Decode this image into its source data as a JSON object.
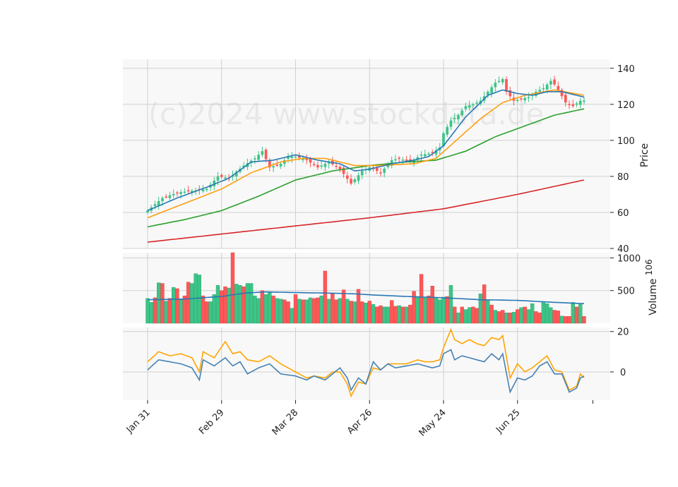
{
  "chart_data": {
    "type": "candlestick",
    "watermark": "(c)2024 www.stockdata.de",
    "x_tick_labels": [
      "Jan 31",
      "Feb 29",
      "Mar 28",
      "Apr 26",
      "May 24",
      "Jun 25"
    ],
    "x_tick_index": [
      0,
      20,
      40,
      60,
      80,
      100
    ],
    "num_sessions": 119,
    "colors": {
      "up": "#3cc487",
      "down": "#ff5757",
      "ma_short": "#2878b5",
      "ma_mid": "#ff9f0f",
      "ma_long": "#2ca02c",
      "ma_200": "#d62728",
      "vol_ma": "#2878b5",
      "osc_1": "#4682b4",
      "osc_2": "#ffa500"
    },
    "price_panel": {
      "ylabel": "Price",
      "yticks": [
        40,
        60,
        80,
        100,
        120,
        140
      ],
      "ylim": [
        40,
        145
      ],
      "close_anchors": [
        [
          0,
          61
        ],
        [
          4,
          68
        ],
        [
          8,
          71
        ],
        [
          12,
          72
        ],
        [
          16,
          73
        ],
        [
          19,
          80
        ],
        [
          22,
          79
        ],
        [
          26,
          86
        ],
        [
          29,
          90
        ],
        [
          31,
          94
        ],
        [
          33,
          85
        ],
        [
          36,
          87
        ],
        [
          38,
          91
        ],
        [
          40,
          91
        ],
        [
          43,
          89
        ],
        [
          46,
          85
        ],
        [
          49,
          88
        ],
        [
          52,
          84
        ],
        [
          55,
          76
        ],
        [
          58,
          83
        ],
        [
          60,
          85
        ],
        [
          63,
          82
        ],
        [
          66,
          89
        ],
        [
          68,
          90
        ],
        [
          71,
          88
        ],
        [
          74,
          92
        ],
        [
          77,
          93
        ],
        [
          79,
          96
        ],
        [
          80,
          104
        ],
        [
          82,
          111
        ],
        [
          84,
          114
        ],
        [
          86,
          119
        ],
        [
          88,
          120
        ],
        [
          90,
          122
        ],
        [
          92,
          127
        ],
        [
          94,
          132
        ],
        [
          96,
          134
        ],
        [
          97,
          127
        ],
        [
          99,
          122
        ],
        [
          101,
          123
        ],
        [
          103,
          124
        ],
        [
          105,
          127
        ],
        [
          107,
          129
        ],
        [
          109,
          133
        ],
        [
          110,
          131
        ],
        [
          111,
          128
        ],
        [
          113,
          121
        ],
        [
          115,
          119
        ],
        [
          117,
          122
        ],
        [
          118,
          122
        ]
      ],
      "ma_short_anchors": [
        [
          0,
          61
        ],
        [
          8,
          68
        ],
        [
          16,
          74
        ],
        [
          22,
          79
        ],
        [
          28,
          88
        ],
        [
          34,
          89
        ],
        [
          40,
          92
        ],
        [
          46,
          89
        ],
        [
          52,
          87
        ],
        [
          56,
          83
        ],
        [
          60,
          84
        ],
        [
          66,
          87
        ],
        [
          72,
          89
        ],
        [
          76,
          91
        ],
        [
          80,
          97
        ],
        [
          86,
          113
        ],
        [
          92,
          125
        ],
        [
          96,
          128
        ],
        [
          100,
          126
        ],
        [
          104,
          125
        ],
        [
          108,
          127
        ],
        [
          112,
          127
        ],
        [
          118,
          124
        ]
      ],
      "ma_mid_anchors": [
        [
          0,
          57
        ],
        [
          10,
          65
        ],
        [
          20,
          73
        ],
        [
          28,
          82
        ],
        [
          36,
          88
        ],
        [
          42,
          90
        ],
        [
          48,
          90
        ],
        [
          56,
          86
        ],
        [
          62,
          86
        ],
        [
          72,
          87
        ],
        [
          78,
          90
        ],
        [
          84,
          101
        ],
        [
          90,
          112
        ],
        [
          96,
          121
        ],
        [
          102,
          125
        ],
        [
          110,
          128
        ],
        [
          118,
          125
        ]
      ],
      "ma_long_anchors": [
        [
          0,
          52
        ],
        [
          10,
          56
        ],
        [
          20,
          61
        ],
        [
          30,
          69
        ],
        [
          40,
          78
        ],
        [
          50,
          83
        ],
        [
          60,
          86
        ],
        [
          70,
          88
        ],
        [
          78,
          89
        ],
        [
          86,
          94
        ],
        [
          94,
          102
        ],
        [
          102,
          108
        ],
        [
          110,
          114
        ],
        [
          118,
          117.5
        ]
      ],
      "ma_200_anchors": [
        [
          0,
          43.5
        ],
        [
          20,
          48
        ],
        [
          40,
          52.5
        ],
        [
          60,
          57
        ],
        [
          80,
          62
        ],
        [
          100,
          70
        ],
        [
          118,
          78
        ]
      ]
    },
    "volume_panel": {
      "ylabel": "Volume",
      "yunit": "10^6",
      "yticks": [
        500,
        1000
      ],
      "ylim": [
        0,
        1080
      ],
      "values": [
        380,
        320,
        390,
        620,
        610,
        340,
        380,
        550,
        530,
        360,
        420,
        630,
        610,
        760,
        740,
        420,
        330,
        330,
        440,
        580,
        500,
        560,
        540,
        1080,
        600,
        580,
        560,
        610,
        610,
        420,
        380,
        500,
        440,
        480,
        420,
        380,
        370,
        360,
        330,
        230,
        440,
        370,
        360,
        360,
        390,
        380,
        390,
        420,
        800,
        370,
        450,
        360,
        380,
        510,
        370,
        340,
        330,
        520,
        330,
        310,
        340,
        290,
        250,
        270,
        250,
        250,
        350,
        260,
        270,
        250,
        250,
        280,
        490,
        400,
        750,
        390,
        420,
        570,
        390,
        360,
        400,
        410,
        580,
        250,
        160,
        250,
        210,
        240,
        250,
        230,
        450,
        590,
        360,
        280,
        200,
        180,
        200,
        160,
        160,
        170,
        210,
        240,
        250,
        210,
        300,
        180,
        160,
        330,
        300,
        240,
        200,
        190,
        110,
        105,
        105,
        320,
        250,
        300,
        105
      ],
      "directions": [
        1,
        1,
        0,
        1,
        0,
        1,
        0,
        1,
        0,
        1,
        0,
        0,
        1,
        1,
        1,
        0,
        0,
        1,
        1,
        1,
        0,
        0,
        1,
        0,
        1,
        1,
        0,
        1,
        1,
        1,
        1,
        0,
        1,
        1,
        0,
        1,
        1,
        0,
        0,
        1,
        0,
        1,
        0,
        1,
        1,
        0,
        0,
        1,
        0,
        1,
        0,
        0,
        1,
        0,
        1,
        0,
        1,
        0,
        0,
        1,
        0,
        1,
        0,
        0,
        1,
        1,
        0,
        0,
        1,
        0,
        1,
        0,
        0,
        1,
        0,
        1,
        0,
        0,
        1,
        1,
        1,
        0,
        1,
        0,
        1,
        0,
        1,
        1,
        0,
        0,
        1,
        0,
        1,
        0,
        1,
        0,
        0,
        1,
        0,
        1,
        0,
        1,
        0,
        1,
        1,
        0,
        0,
        1,
        1,
        1,
        0,
        0,
        1,
        0,
        0,
        1,
        0,
        1,
        0
      ],
      "ma_anchors": [
        [
          0,
          360
        ],
        [
          10,
          370
        ],
        [
          20,
          410
        ],
        [
          26,
          460
        ],
        [
          32,
          480
        ],
        [
          40,
          470
        ],
        [
          50,
          460
        ],
        [
          56,
          450
        ],
        [
          62,
          430
        ],
        [
          70,
          410
        ],
        [
          80,
          390
        ],
        [
          90,
          360
        ],
        [
          100,
          350
        ],
        [
          110,
          320
        ],
        [
          118,
          300
        ]
      ]
    },
    "oscillator_panel": {
      "yticks": [
        0,
        20
      ],
      "ylim": [
        -14,
        22
      ],
      "series_1_anchors": [
        [
          0,
          1
        ],
        [
          3,
          6
        ],
        [
          6,
          5
        ],
        [
          9,
          4
        ],
        [
          12,
          2
        ],
        [
          14,
          -4
        ],
        [
          15,
          6
        ],
        [
          18,
          3
        ],
        [
          21,
          7
        ],
        [
          23,
          3
        ],
        [
          25,
          5
        ],
        [
          27,
          -1
        ],
        [
          30,
          2
        ],
        [
          33,
          4
        ],
        [
          36,
          -1
        ],
        [
          40,
          -2
        ],
        [
          43,
          -4
        ],
        [
          45,
          -2
        ],
        [
          48,
          -4
        ],
        [
          50,
          -1
        ],
        [
          52,
          2
        ],
        [
          54,
          -3
        ],
        [
          55,
          -9
        ],
        [
          57,
          -3
        ],
        [
          59,
          -6
        ],
        [
          61,
          5
        ],
        [
          63,
          1
        ],
        [
          65,
          4
        ],
        [
          67,
          2
        ],
        [
          70,
          3
        ],
        [
          73,
          4
        ],
        [
          75,
          3
        ],
        [
          77,
          2
        ],
        [
          79,
          3
        ],
        [
          80,
          9
        ],
        [
          82,
          11
        ],
        [
          83,
          6
        ],
        [
          85,
          8
        ],
        [
          87,
          7
        ],
        [
          89,
          6
        ],
        [
          91,
          5
        ],
        [
          93,
          9
        ],
        [
          95,
          6
        ],
        [
          96,
          9
        ],
        [
          98,
          -10
        ],
        [
          100,
          -3
        ],
        [
          102,
          -4
        ],
        [
          104,
          -2
        ],
        [
          106,
          3
        ],
        [
          108,
          5
        ],
        [
          110,
          -1
        ],
        [
          112,
          -1
        ],
        [
          114,
          -10
        ],
        [
          116,
          -8
        ],
        [
          117,
          -3
        ],
        [
          118,
          -2
        ]
      ],
      "series_2_anchors": [
        [
          0,
          5
        ],
        [
          3,
          10
        ],
        [
          6,
          8
        ],
        [
          9,
          9
        ],
        [
          12,
          7
        ],
        [
          14,
          0
        ],
        [
          15,
          10
        ],
        [
          18,
          7
        ],
        [
          21,
          15
        ],
        [
          23,
          9
        ],
        [
          25,
          10
        ],
        [
          27,
          6
        ],
        [
          30,
          5
        ],
        [
          33,
          8
        ],
        [
          36,
          4
        ],
        [
          40,
          0
        ],
        [
          43,
          -3
        ],
        [
          45,
          -2
        ],
        [
          48,
          -3
        ],
        [
          50,
          0
        ],
        [
          52,
          0
        ],
        [
          54,
          -6
        ],
        [
          55,
          -12
        ],
        [
          57,
          -5
        ],
        [
          59,
          -6
        ],
        [
          61,
          2
        ],
        [
          63,
          1
        ],
        [
          65,
          4
        ],
        [
          67,
          4
        ],
        [
          70,
          4
        ],
        [
          73,
          6
        ],
        [
          75,
          5
        ],
        [
          77,
          5
        ],
        [
          79,
          6
        ],
        [
          80,
          12
        ],
        [
          82,
          21
        ],
        [
          83,
          16
        ],
        [
          85,
          14
        ],
        [
          87,
          16
        ],
        [
          89,
          14
        ],
        [
          91,
          13
        ],
        [
          93,
          17
        ],
        [
          95,
          16
        ],
        [
          96,
          18
        ],
        [
          98,
          -3
        ],
        [
          100,
          4
        ],
        [
          102,
          0
        ],
        [
          104,
          2
        ],
        [
          106,
          5
        ],
        [
          108,
          8
        ],
        [
          110,
          1
        ],
        [
          112,
          0
        ],
        [
          114,
          -9
        ],
        [
          116,
          -7
        ],
        [
          117,
          -1
        ],
        [
          118,
          -3
        ]
      ]
    }
  }
}
